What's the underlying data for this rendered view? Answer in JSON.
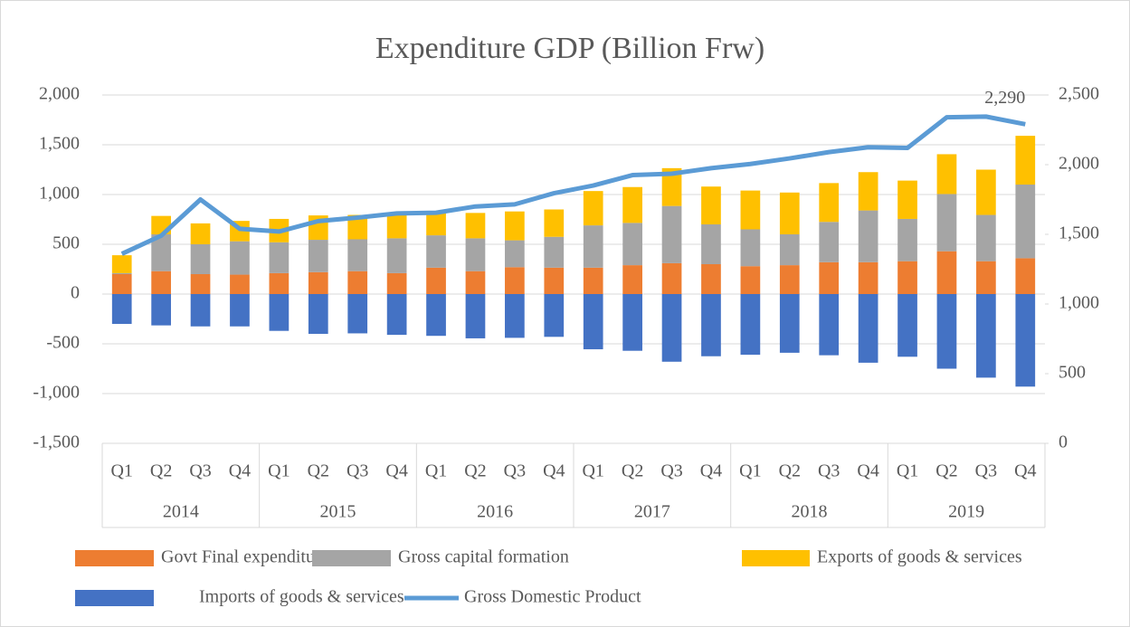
{
  "chart_data": {
    "type": "bar",
    "stacked": true,
    "title": "Expenditure GDP (Billion Frw)",
    "categories": [
      "Q1",
      "Q2",
      "Q3",
      "Q4",
      "Q1",
      "Q2",
      "Q3",
      "Q4",
      "Q1",
      "Q2",
      "Q3",
      "Q4",
      "Q1",
      "Q2",
      "Q3",
      "Q4",
      "Q1",
      "Q2",
      "Q3",
      "Q4",
      "Q1",
      "Q2",
      "Q3",
      "Q4"
    ],
    "category_groups": [
      "2014",
      "2015",
      "2016",
      "2017",
      "2018",
      "2019"
    ],
    "series": [
      {
        "name": "Govt Final expenditure",
        "type": "bar",
        "color": "#ed7d31",
        "values": [
          200,
          230,
          200,
          195,
          210,
          220,
          230,
          210,
          265,
          230,
          270,
          265,
          265,
          290,
          310,
          300,
          280,
          290,
          320,
          320,
          330,
          430,
          330,
          360
        ]
      },
      {
        "name": "Gross capital formation",
        "type": "bar",
        "color": "#a5a5a5",
        "values": [
          10,
          370,
          300,
          335,
          310,
          325,
          320,
          350,
          325,
          330,
          270,
          310,
          425,
          425,
          575,
          400,
          370,
          310,
          405,
          520,
          425,
          575,
          465,
          740
        ]
      },
      {
        "name": "Exports of goods & services",
        "type": "bar",
        "color": "#ffc000",
        "values": [
          180,
          185,
          210,
          205,
          235,
          245,
          245,
          240,
          220,
          255,
          290,
          275,
          345,
          360,
          380,
          380,
          390,
          420,
          390,
          385,
          385,
          400,
          455,
          490
        ]
      },
      {
        "name": "Imports of goods & services",
        "type": "bar",
        "color": "#4472c4",
        "values": [
          -300,
          -315,
          -325,
          -325,
          -370,
          -400,
          -395,
          -410,
          -420,
          -445,
          -440,
          -430,
          -555,
          -570,
          -680,
          -625,
          -610,
          -590,
          -615,
          -690,
          -630,
          -750,
          -840,
          -930
        ]
      },
      {
        "name": "Gross Domestic Product",
        "type": "line",
        "axis": "y2",
        "color": "#5b9bd5",
        "values": [
          1360,
          1490,
          1750,
          1540,
          1520,
          1595,
          1620,
          1650,
          1655,
          1700,
          1715,
          1795,
          1850,
          1925,
          1935,
          1975,
          2005,
          2045,
          2090,
          2125,
          2120,
          2340,
          2345,
          2290
        ],
        "value_labels": [
          null,
          null,
          null,
          null,
          null,
          null,
          null,
          null,
          null,
          null,
          null,
          null,
          null,
          null,
          null,
          null,
          null,
          null,
          null,
          null,
          null,
          null,
          null,
          "2,290"
        ]
      }
    ],
    "ylim": [
      -1500,
      2000
    ],
    "yticks": [
      {
        "value": -1500,
        "label": "-1,500"
      },
      {
        "value": -1000,
        "label": "-1,000"
      },
      -500,
      0,
      500,
      {
        "value": 1000,
        "label": "1,000"
      },
      {
        "value": 1500,
        "label": "1,500"
      },
      {
        "value": 2000,
        "label": "2,000"
      }
    ],
    "y2lim": [
      0,
      2500
    ],
    "y2ticks": [
      0,
      500,
      {
        "value": 1000,
        "label": "1,000"
      },
      {
        "value": 1500,
        "label": "1,500"
      },
      {
        "value": 2000,
        "label": "2,000"
      },
      {
        "value": 2500,
        "label": "2,500"
      }
    ],
    "grid": true,
    "legend": "bottom"
  }
}
